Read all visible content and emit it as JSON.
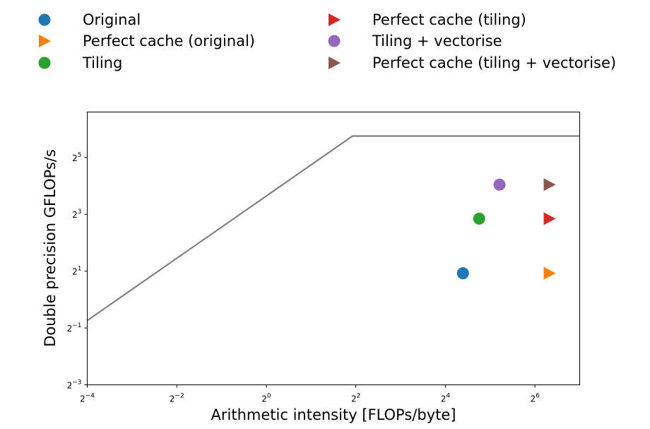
{
  "chart_data": {
    "type": "scatter",
    "xlabel": "Arithmetic intensity [FLOPs/byte]",
    "ylabel": "Double precision GFLOPs/s",
    "xscale": "log2",
    "yscale": "log2",
    "xlim": [
      0.0625,
      128
    ],
    "ylim": [
      0.125,
      97
    ],
    "xticks": [
      {
        "value": 0.0625,
        "base": "2",
        "exp": "−4"
      },
      {
        "value": 0.25,
        "base": "2",
        "exp": "−2"
      },
      {
        "value": 1,
        "base": "2",
        "exp": "0"
      },
      {
        "value": 4,
        "base": "2",
        "exp": "2"
      },
      {
        "value": 16,
        "base": "2",
        "exp": "4"
      },
      {
        "value": 64,
        "base": "2",
        "exp": "6"
      }
    ],
    "yticks": [
      {
        "value": 0.125,
        "base": "2",
        "exp": "−3"
      },
      {
        "value": 0.5,
        "base": "2",
        "exp": "−1"
      },
      {
        "value": 2,
        "base": "2",
        "exp": "1"
      },
      {
        "value": 8,
        "base": "2",
        "exp": "3"
      },
      {
        "value": 32,
        "base": "2",
        "exp": "5"
      }
    ],
    "roofline": {
      "color": "#808080",
      "points": [
        [
          0.0625,
          0.6
        ],
        [
          3.8,
          54
        ],
        [
          128,
          54
        ]
      ]
    },
    "series": [
      {
        "name": "Original",
        "marker": "circle",
        "color": "#1f77b4",
        "x": 21,
        "y": 1.9
      },
      {
        "name": "Perfect cache (original)",
        "marker": "triangle-right",
        "color": "#ff7f0e",
        "x": 80,
        "y": 1.9
      },
      {
        "name": "Tiling",
        "marker": "circle",
        "color": "#2ca02c",
        "x": 27,
        "y": 7.2
      },
      {
        "name": "Perfect cache (tiling)",
        "marker": "triangle-right",
        "color": "#d62728",
        "x": 80,
        "y": 7.2
      },
      {
        "name": "Tiling + vectorise",
        "marker": "circle",
        "color": "#9467bd",
        "x": 37,
        "y": 16.5
      },
      {
        "name": "Perfect cache (tiling + vectorise)",
        "marker": "triangle-right",
        "color": "#8c564b",
        "x": 80,
        "y": 16.5
      }
    ],
    "legend_placement": "top, outside plot, two columns",
    "grid": false
  }
}
